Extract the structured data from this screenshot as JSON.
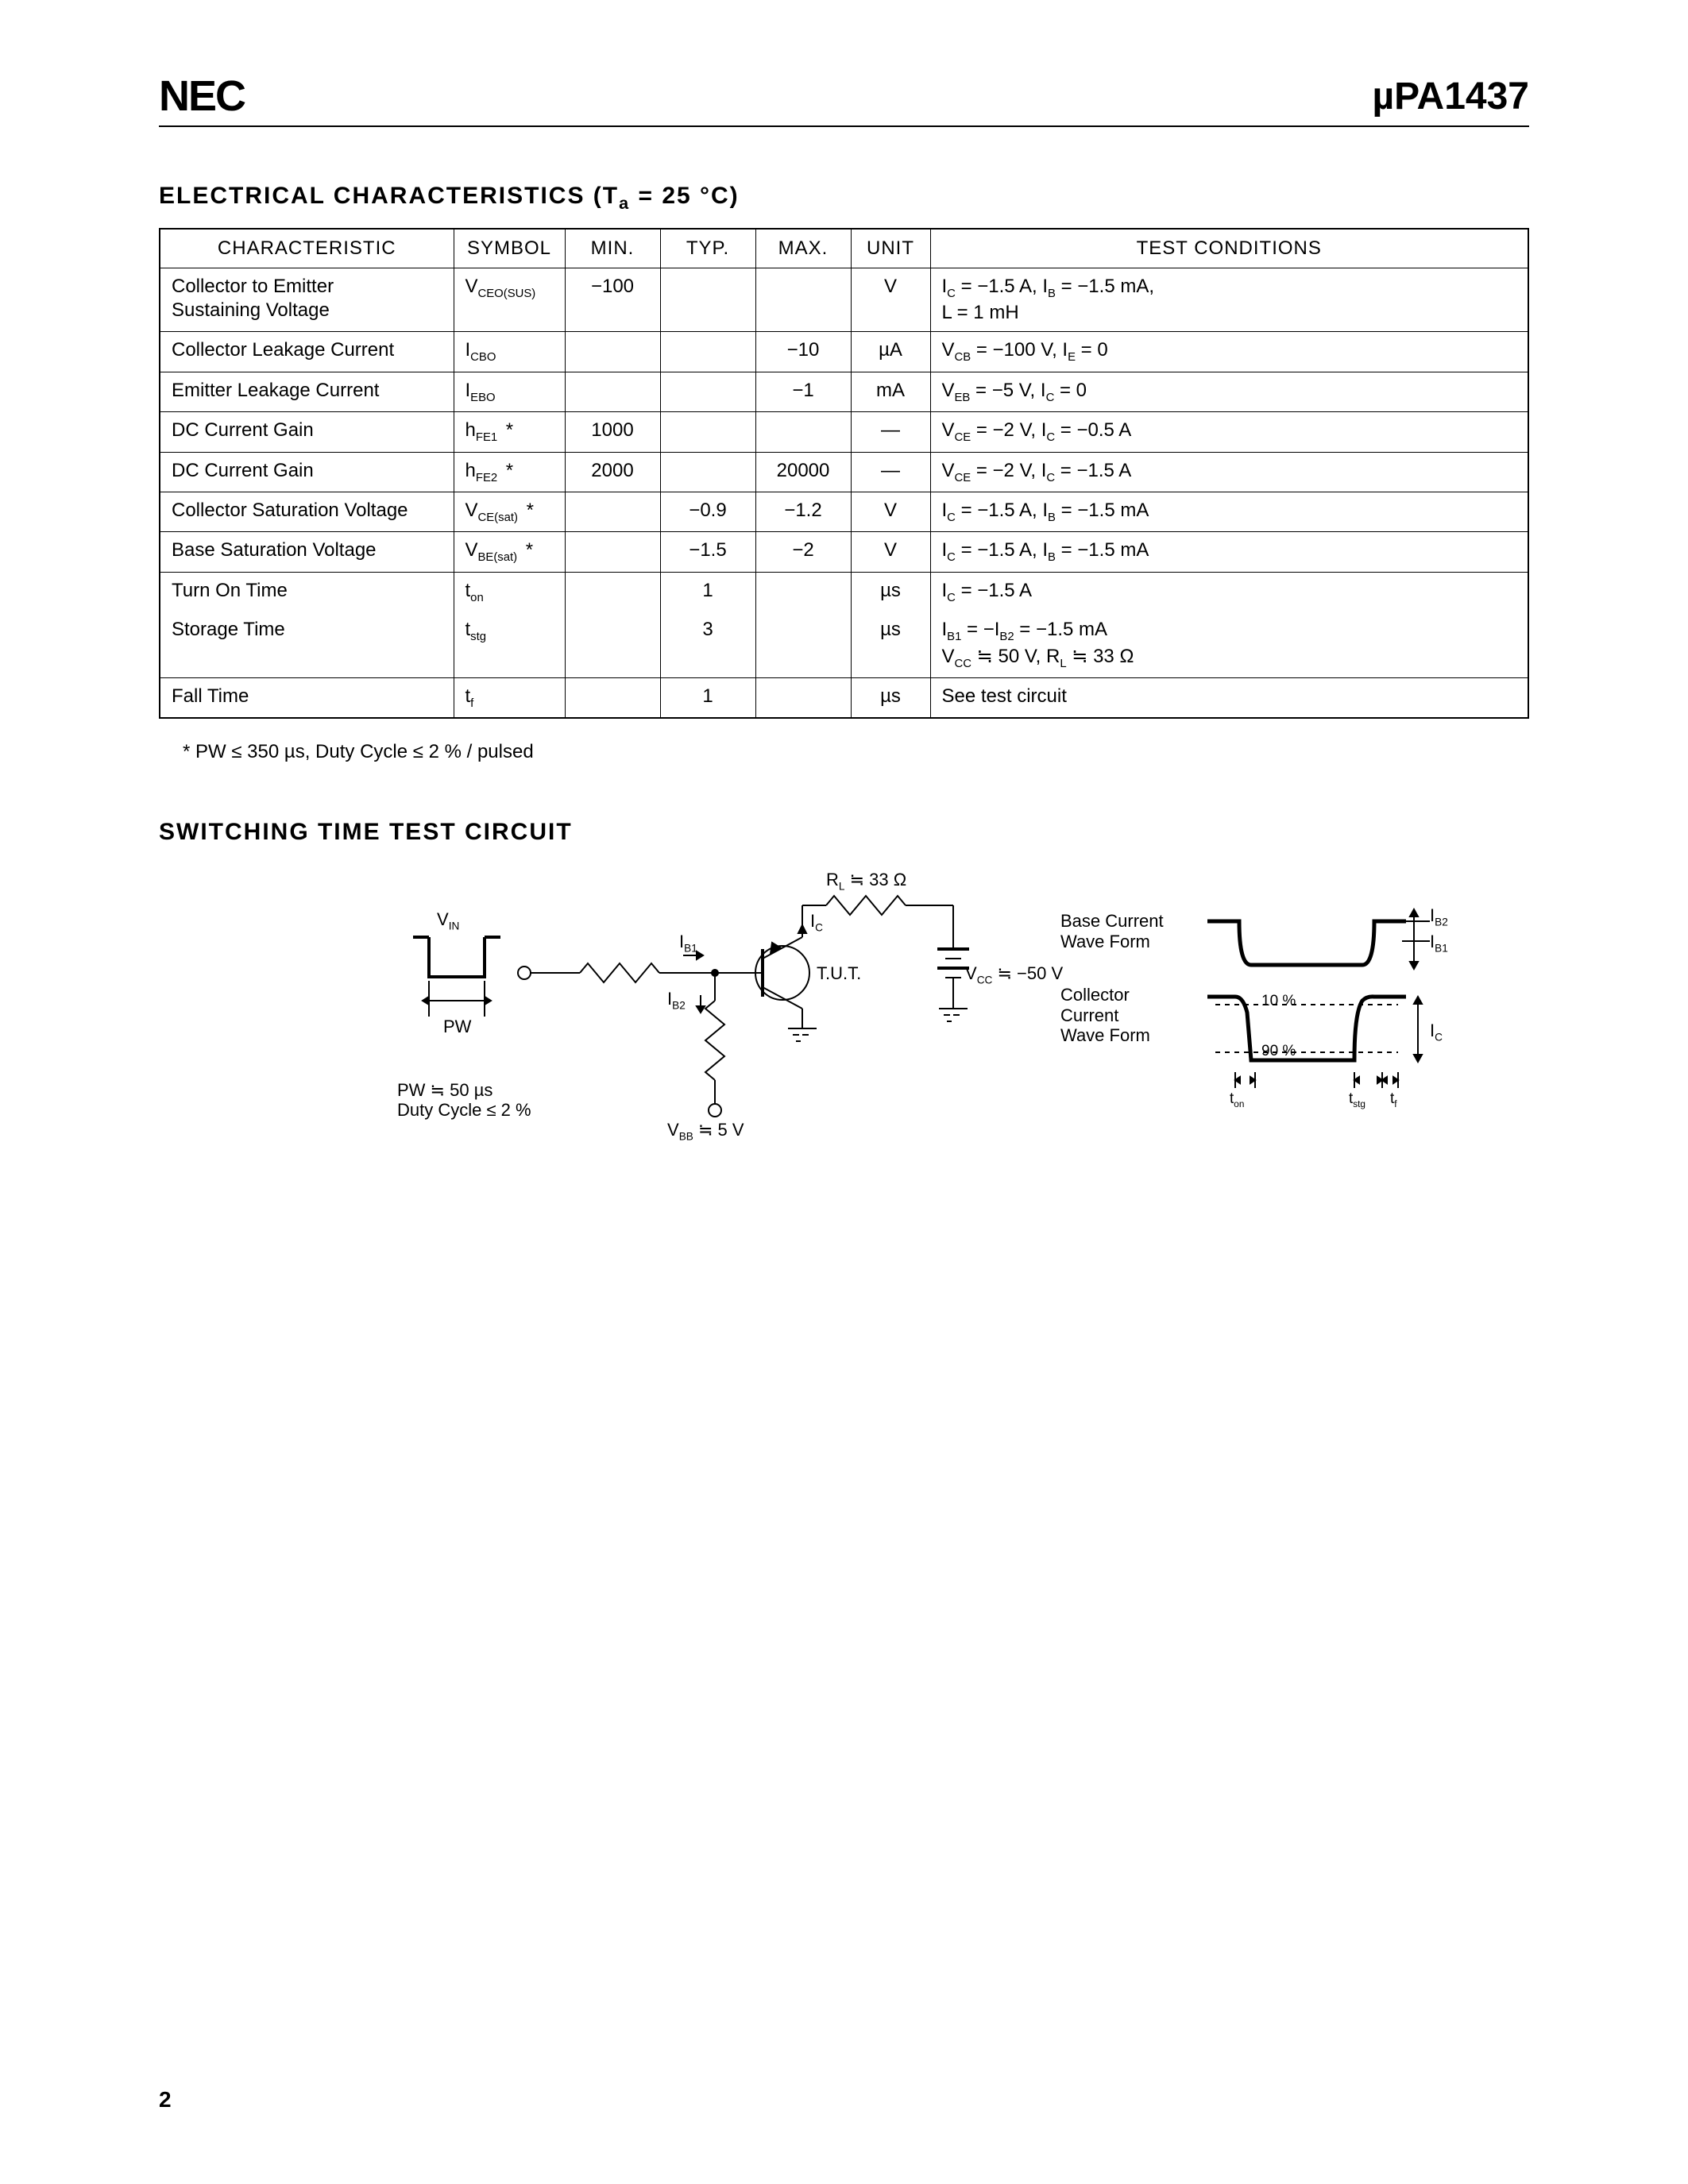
{
  "header": {
    "logo": "NEC",
    "part_number": "µPA1437"
  },
  "section1": {
    "title_prefix": "ELECTRICAL  CHARACTERISTICS  (T",
    "title_sub": "a",
    "title_suffix": " = 25 °C)",
    "columns": [
      "CHARACTERISTIC",
      "SYMBOL",
      "MIN.",
      "TYP.",
      "MAX.",
      "UNIT",
      "TEST CONDITIONS"
    ],
    "rows": [
      {
        "char": "Collector to Emitter\nSustaining Voltage",
        "sym": "V",
        "sub": "CEO(SUS)",
        "star": false,
        "min": "−100",
        "typ": "",
        "max": "",
        "unit": "V",
        "cond": "I<sub>C</sub> = −1.5 A, I<sub>B</sub> = −1.5 mA,\nL = 1 mH"
      },
      {
        "char": "Collector Leakage Current",
        "sym": "I",
        "sub": "CBO",
        "star": false,
        "min": "",
        "typ": "",
        "max": "−10",
        "unit": "µA",
        "cond": "V<sub>CB</sub> = −100 V, I<sub>E</sub> = 0"
      },
      {
        "char": "Emitter Leakage Current",
        "sym": "I",
        "sub": "EBO",
        "star": false,
        "min": "",
        "typ": "",
        "max": "−1",
        "unit": "mA",
        "cond": "V<sub>EB</sub> = −5 V, I<sub>C</sub> = 0"
      },
      {
        "char": "DC Current Gain",
        "sym": "h",
        "sub": "FE1",
        "star": true,
        "min": "1000",
        "typ": "",
        "max": "",
        "unit": "—",
        "cond": "V<sub>CE</sub> = −2 V, I<sub>C</sub> = −0.5 A"
      },
      {
        "char": "DC Current Gain",
        "sym": "h",
        "sub": "FE2",
        "star": true,
        "min": "2000",
        "typ": "",
        "max": "20000",
        "unit": "—",
        "cond": "V<sub>CE</sub> = −2 V, I<sub>C</sub> = −1.5 A"
      },
      {
        "char": "Collector Saturation Voltage",
        "sym": "V",
        "sub": "CE(sat)",
        "star": true,
        "min": "",
        "typ": "−0.9",
        "max": "−1.2",
        "unit": "V",
        "cond": "I<sub>C</sub> = −1.5 A, I<sub>B</sub> = −1.5 mA"
      },
      {
        "char": "Base Saturation Voltage",
        "sym": "V",
        "sub": "BE(sat)",
        "star": true,
        "min": "",
        "typ": "−1.5",
        "max": "−2",
        "unit": "V",
        "cond": "I<sub>C</sub> = −1.5 A, I<sub>B</sub> = −1.5 mA"
      },
      {
        "char": "Turn On Time",
        "sym": "t",
        "sub": "on",
        "star": false,
        "min": "",
        "typ": "1",
        "max": "",
        "unit": "µs",
        "cond": "I<sub>C</sub> = −1.5 A"
      },
      {
        "char": "Storage Time",
        "sym": "t",
        "sub": "stg",
        "star": false,
        "min": "",
        "typ": "3",
        "max": "",
        "unit": "µs",
        "cond": "I<sub>B1</sub> = −I<sub>B2</sub> = −1.5 mA\nV<sub>CC</sub> ≒ 50 V, R<sub>L</sub> ≒ 33 Ω",
        "no_top": true
      },
      {
        "char": "Fall Time",
        "sym": "t",
        "sub": "f",
        "star": false,
        "min": "",
        "typ": "1",
        "max": "",
        "unit": "µs",
        "cond": "See test circuit"
      }
    ],
    "footnote": "*  PW ≤ 350 µs, Duty Cycle ≤ 2 % / pulsed"
  },
  "section2": {
    "title": "SWITCHING  TIME  TEST  CIRCUIT",
    "labels": {
      "vin": "V",
      "vin_sub": "IN",
      "pw": "PW",
      "pw_note1": "PW ≒ 50 µs",
      "pw_note2": "Duty Cycle ≤ 2 %",
      "rl": "R",
      "rl_sub": "L",
      "rl_val": " ≒ 33 Ω",
      "ic": "I",
      "ic_sub": "C",
      "ib1": "I",
      "ib1_sub": "B1",
      "ib2": "I",
      "ib2_sub": "B2",
      "tut": "T.U.T.",
      "vbb": "V",
      "vbb_sub": "BB",
      "vbb_val": " ≒ 5 V",
      "vcc": "V",
      "vcc_sub": "CC",
      "vcc_val": " ≒ −50 V",
      "bc_wave": "Base Current\nWave Form",
      "cc_wave": "Collector\nCurrent\nWave Form",
      "p10": "10 %",
      "p90": "90 %",
      "ton": "t",
      "ton_sub": "on",
      "tstg": "t",
      "tstg_sub": "stg",
      "tf": "t",
      "tf_sub": "f"
    },
    "style": {
      "stroke": "#000000",
      "line_thin": 2,
      "line_thick": 4,
      "bg": "#ffffff"
    }
  },
  "page_number": "2"
}
